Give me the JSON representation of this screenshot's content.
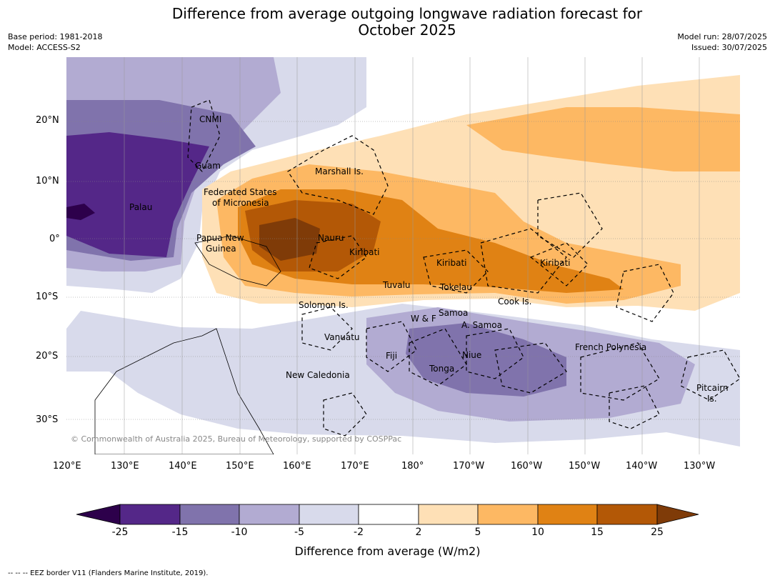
{
  "title_line1": "Difference from average outgoing longwave radiation forecast for",
  "title_line2": "October 2025",
  "base_period": "Base period: 1981-2018",
  "model": "Model: ACCESS-S2",
  "model_run": "Model run: 28/07/2025",
  "issued": "Issued: 30/07/2025",
  "copyright": "© Commonwealth of Australia 2025, Bureau of Meteorology, supported by COSPPac",
  "lon_ticks": [
    "120°E",
    "130°E",
    "140°E",
    "150°E",
    "160°E",
    "170°E",
    "180°",
    "170°W",
    "160°W",
    "150°W",
    "140°W",
    "130°W"
  ],
  "lat_ticks": [
    "20°N",
    "10°N",
    "0°",
    "10°S",
    "20°S",
    "30°S"
  ],
  "regions": {
    "cnmi": "CNMI",
    "guam": "Guam",
    "marshall": "Marshall Is.",
    "fsm1": "Federated States",
    "fsm2": "of Micronesia",
    "palau": "Palau",
    "png1": "Papua New",
    "png2": "Guinea",
    "nauru": "Nauru",
    "kiribati_w": "Kiribati",
    "kiribati_c": "Kiribati",
    "kiribati_e": "Kiribati",
    "tuvalu": "Tuvalu",
    "tokelau": "Tokelau",
    "solomon": "Solomon Is.",
    "wf": "W & F",
    "samoa": "Samoa",
    "asamoa": "A. Samoa",
    "cook": "Cook Is.",
    "vanuatu": "Vanuatu",
    "fiji": "Fiji",
    "niue": "Niue",
    "tonga": "Tonga",
    "frpoly": "French Polynesia",
    "newcal": "New Caledonia",
    "pitcairn1": "Pitcairn",
    "pitcairn2": "Is."
  },
  "colorbar": {
    "ticks": [
      "-25",
      "-15",
      "-10",
      "-5",
      "-2",
      "2",
      "5",
      "10",
      "15",
      "25"
    ],
    "colors": {
      "lt_neg25": "#2d004b",
      "neg25_15": "#542788",
      "neg15_10": "#8073ac",
      "neg10_5": "#b2abd2",
      "neg5_2": "#d8daeb",
      "neg2_2": "#ffffff",
      "p2_5": "#fee0b6",
      "p5_10": "#fdb863",
      "p10_15": "#e08214",
      "p15_25": "#b35806",
      "gt25": "#7f3b08"
    },
    "label": "Difference from average (W/m2)"
  },
  "footer": "-- -- -- EEZ border V11 (Flanders Marine Institute, 2019)."
}
